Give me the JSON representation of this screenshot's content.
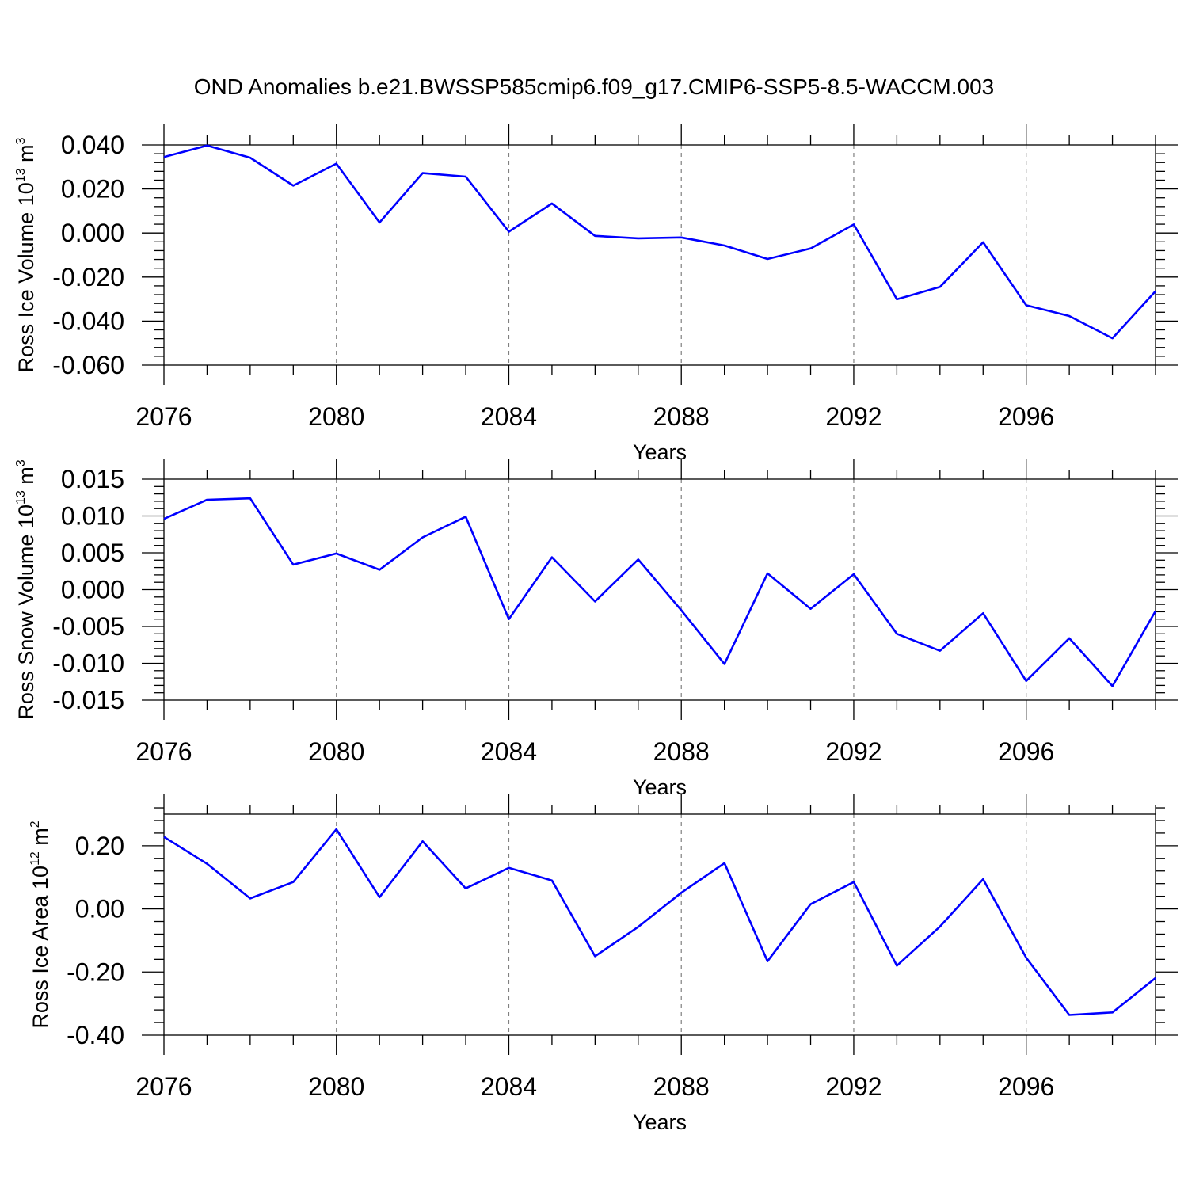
{
  "title": "OND Anomalies b.e21.BWSSP585cmip6.f09_g17.CMIP6-SSP5-8.5-WACCM.003",
  "colors": {
    "line": "#0000ff",
    "axis": "#000000",
    "grid": "#808080",
    "background": "#ffffff"
  },
  "chart_data": [
    {
      "type": "line",
      "ylabel": {
        "text": "Ross Ice Volume 10",
        "exponent": "13",
        "unit": " m",
        "unit_exponent": "3"
      },
      "xlabel": "Years",
      "x": [
        2076,
        2077,
        2078,
        2079,
        2080,
        2081,
        2082,
        2083,
        2084,
        2085,
        2086,
        2087,
        2088,
        2089,
        2090,
        2091,
        2092,
        2093,
        2094,
        2095,
        2096,
        2097,
        2098,
        2099
      ],
      "values": [
        0.0345,
        0.0397,
        0.0342,
        0.0215,
        0.0315,
        0.0048,
        0.0272,
        0.0256,
        0.0006,
        0.0134,
        -0.0013,
        -0.0024,
        -0.002,
        -0.0057,
        -0.0118,
        -0.007,
        0.0039,
        -0.0301,
        -0.0245,
        -0.0042,
        -0.0328,
        -0.0377,
        -0.0478,
        -0.0264
      ],
      "xlim": [
        2076,
        2099
      ],
      "ylim": [
        -0.06,
        0.04
      ],
      "xticks": [
        2076,
        2080,
        2084,
        2088,
        2092,
        2096
      ],
      "xtick_labels": [
        "2076",
        "2080",
        "2084",
        "2088",
        "2092",
        "2096"
      ],
      "yticks": [
        -0.06,
        -0.04,
        -0.02,
        0.0,
        0.02,
        0.04
      ],
      "ytick_labels": [
        "-0.060",
        "-0.040",
        "-0.020",
        "0.000",
        "0.020",
        "0.040"
      ],
      "yminor_step": 0.004,
      "grid": "dashed vertical at major x ticks"
    },
    {
      "type": "line",
      "ylabel": {
        "text": "Ross Snow Volume 10",
        "exponent": "13",
        "unit": " m",
        "unit_exponent": "3"
      },
      "xlabel": "Years",
      "x": [
        2076,
        2077,
        2078,
        2079,
        2080,
        2081,
        2082,
        2083,
        2084,
        2085,
        2086,
        2087,
        2088,
        2089,
        2090,
        2091,
        2092,
        2093,
        2094,
        2095,
        2096,
        2097,
        2098,
        2099
      ],
      "values": [
        0.0096,
        0.0122,
        0.0124,
        0.0034,
        0.0049,
        0.0027,
        0.0071,
        0.0099,
        -0.004,
        0.0044,
        -0.0016,
        0.0041,
        -0.0028,
        -0.0101,
        0.0022,
        -0.0026,
        0.0021,
        -0.006,
        -0.0083,
        -0.0032,
        -0.0124,
        -0.0066,
        -0.0131,
        -0.0029
      ],
      "xlim": [
        2076,
        2099
      ],
      "ylim": [
        -0.015,
        0.015
      ],
      "xticks": [
        2076,
        2080,
        2084,
        2088,
        2092,
        2096
      ],
      "xtick_labels": [
        "2076",
        "2080",
        "2084",
        "2088",
        "2092",
        "2096"
      ],
      "yticks": [
        -0.015,
        -0.01,
        -0.005,
        0.0,
        0.005,
        0.01,
        0.015
      ],
      "ytick_labels": [
        "-0.015",
        "-0.010",
        "-0.005",
        "0.000",
        "0.005",
        "0.010",
        "0.015"
      ],
      "yminor_step": 0.001,
      "grid": "dashed vertical at major x ticks"
    },
    {
      "type": "line",
      "ylabel": {
        "text": "Ross Ice Area 10",
        "exponent": "12",
        "unit": " m",
        "unit_exponent": "2"
      },
      "xlabel": "Years",
      "x": [
        2076,
        2077,
        2078,
        2079,
        2080,
        2081,
        2082,
        2083,
        2084,
        2085,
        2086,
        2087,
        2088,
        2089,
        2090,
        2091,
        2092,
        2093,
        2094,
        2095,
        2096,
        2097,
        2098,
        2099
      ],
      "values": [
        0.228,
        0.143,
        0.033,
        0.085,
        0.252,
        0.037,
        0.214,
        0.065,
        0.13,
        0.09,
        -0.15,
        -0.057,
        0.051,
        0.145,
        -0.166,
        0.015,
        0.085,
        -0.18,
        -0.056,
        0.094,
        -0.155,
        -0.336,
        -0.328,
        -0.219
      ],
      "xlim": [
        2076,
        2099
      ],
      "ylim": [
        -0.4,
        0.3
      ],
      "xticks": [
        2076,
        2080,
        2084,
        2088,
        2092,
        2096
      ],
      "xtick_labels": [
        "2076",
        "2080",
        "2084",
        "2088",
        "2092",
        "2096"
      ],
      "yticks": [
        -0.4,
        -0.2,
        0.0,
        0.2
      ],
      "ytick_labels": [
        "-0.40",
        "-0.20",
        "0.00",
        "0.20"
      ],
      "yminor_step": 0.04,
      "grid": "dashed vertical at major x ticks"
    }
  ]
}
